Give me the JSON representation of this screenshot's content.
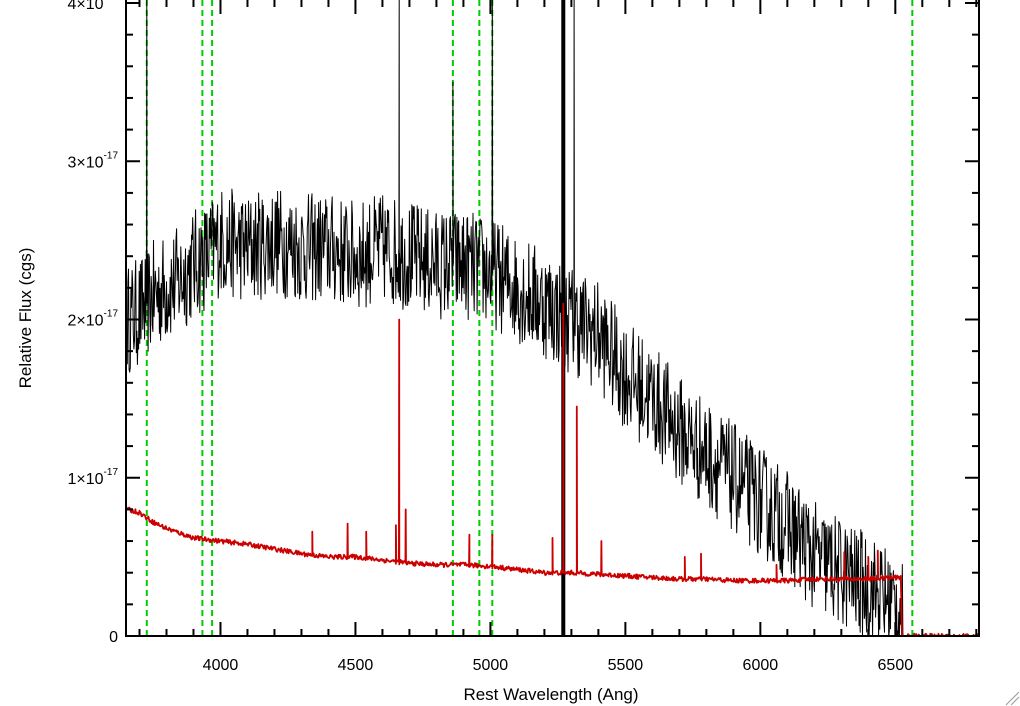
{
  "chart_data": {
    "type": "line",
    "title": "",
    "xlabel": "Rest Wavelength (Ang)",
    "ylabel": "Relative Flux (cgs)",
    "xlim": [
      3650,
      6810
    ],
    "ylim": [
      0,
      4e-17
    ],
    "x_ticks": [
      4000,
      4500,
      5000,
      5500,
      6000,
      6500
    ],
    "x_tick_labels": [
      "4000",
      "4500",
      "5000",
      "5500",
      "6000",
      "6500"
    ],
    "y_ticks": [
      0,
      1e-17,
      2e-17,
      3e-17,
      4e-17
    ],
    "y_tick_labels": [
      {
        "mantissa": "0",
        "base": "",
        "exponent": ""
      },
      {
        "mantissa": "1",
        "base": "×10",
        "exponent": "-17"
      },
      {
        "mantissa": "2",
        "base": "×10",
        "exponent": "-17"
      },
      {
        "mantissa": "3",
        "base": "×10",
        "exponent": "-17"
      },
      {
        "mantissa": "4",
        "base": "×10",
        "exponent": "-17"
      }
    ],
    "grid": false,
    "legend": "none",
    "series": [
      {
        "color": "#000000",
        "noise_amplitude": 3.5e-18,
        "x": [
          3655,
          3700,
          3750,
          3800,
          3850,
          3900,
          3950,
          4000,
          4100,
          4200,
          4300,
          4400,
          4500,
          4600,
          4700,
          4800,
          4900,
          5000,
          5100,
          5200,
          5300,
          5400,
          5500,
          5600,
          5700,
          5800,
          5900,
          6000,
          6100,
          6200,
          6300,
          6400,
          6500,
          6530
        ],
        "y": [
          2e-17,
          2.05e-17,
          2.15e-17,
          2.2e-17,
          2.25e-17,
          2.35e-17,
          2.4e-17,
          2.5e-17,
          2.45e-17,
          2.5e-17,
          2.45e-17,
          2.45e-17,
          2.4e-17,
          2.45e-17,
          2.4e-17,
          2.35e-17,
          2.35e-17,
          2.3e-17,
          2.2e-17,
          2.1e-17,
          2e-17,
          1.9e-17,
          1.65e-17,
          1.5e-17,
          1.3e-17,
          1.15e-17,
          1e-17,
          8.5e-18,
          7e-18,
          5e-18,
          4e-18,
          3e-18,
          2e-18,
          1e-18
        ],
        "spikes": [
          {
            "x": 3727,
            "y": 4.1e-17
          },
          {
            "x": 4662,
            "y": 4.1e-17
          },
          {
            "x": 4861,
            "y": 3.5e-17
          },
          {
            "x": 5007,
            "y": 4.1e-17
          },
          {
            "x": 5270,
            "y": 4.1e-17
          },
          {
            "x": 5310,
            "y": 4.1e-17
          }
        ]
      },
      {
        "color": "#cc0000",
        "x": [
          3655,
          3700,
          3750,
          3800,
          3850,
          3900,
          4000,
          4100,
          4200,
          4300,
          4400,
          4500,
          4600,
          4700,
          4800,
          4900,
          5000,
          5100,
          5200,
          5300,
          5400,
          5500,
          5600,
          5700,
          5800,
          5900,
          6000,
          6100,
          6200,
          6300,
          6400,
          6500,
          6520,
          6525,
          6810
        ],
        "y": [
          8e-18,
          7.8e-18,
          7.2e-18,
          6.8e-18,
          6.5e-18,
          6.2e-18,
          6e-18,
          5.8e-18,
          5.5e-18,
          5.2e-18,
          5e-18,
          5e-18,
          4.8e-18,
          4.6e-18,
          4.5e-18,
          4.5e-18,
          4.4e-18,
          4.2e-18,
          4e-18,
          4e-18,
          3.9e-18,
          3.8e-18,
          3.7e-18,
          3.6e-18,
          3.6e-18,
          3.5e-18,
          3.5e-18,
          3.5e-18,
          3.6e-18,
          3.6e-18,
          3.6e-18,
          3.7e-18,
          3.7e-18,
          0.0,
          0.0
        ],
        "spikes": [
          {
            "x": 4340,
            "y": 6.6e-18
          },
          {
            "x": 4471,
            "y": 7.1e-18
          },
          {
            "x": 4540,
            "y": 6.6e-18
          },
          {
            "x": 4650,
            "y": 7e-18
          },
          {
            "x": 4662,
            "y": 2e-17
          },
          {
            "x": 4686,
            "y": 8e-18
          },
          {
            "x": 4922,
            "y": 6.4e-18
          },
          {
            "x": 5007,
            "y": 6.4e-18
          },
          {
            "x": 5230,
            "y": 6.2e-18
          },
          {
            "x": 5270,
            "y": 2.1e-17
          },
          {
            "x": 5320,
            "y": 1.45e-17
          },
          {
            "x": 5411,
            "y": 6e-18
          },
          {
            "x": 5720,
            "y": 5e-18
          },
          {
            "x": 5780,
            "y": 5.2e-18
          },
          {
            "x": 6060,
            "y": 4.5e-18
          },
          {
            "x": 6311,
            "y": 5.3e-18
          },
          {
            "x": 6400,
            "y": 5e-18
          },
          {
            "x": 6435,
            "y": 5.4e-18
          }
        ]
      }
    ],
    "reference_lines": [
      {
        "x": 3727,
        "color": "#00cc00",
        "style": "dashed"
      },
      {
        "x": 3933,
        "color": "#00cc00",
        "style": "dashed"
      },
      {
        "x": 3969,
        "color": "#00cc00",
        "style": "dashed"
      },
      {
        "x": 4861,
        "color": "#00cc00",
        "style": "dashed"
      },
      {
        "x": 4959,
        "color": "#00cc00",
        "style": "dashed"
      },
      {
        "x": 5007,
        "color": "#00cc00",
        "style": "dashed"
      },
      {
        "x": 5270,
        "color": "#000000",
        "style": "solid-thick"
      },
      {
        "x": 6563,
        "color": "#00cc00",
        "style": "dashed"
      }
    ]
  }
}
